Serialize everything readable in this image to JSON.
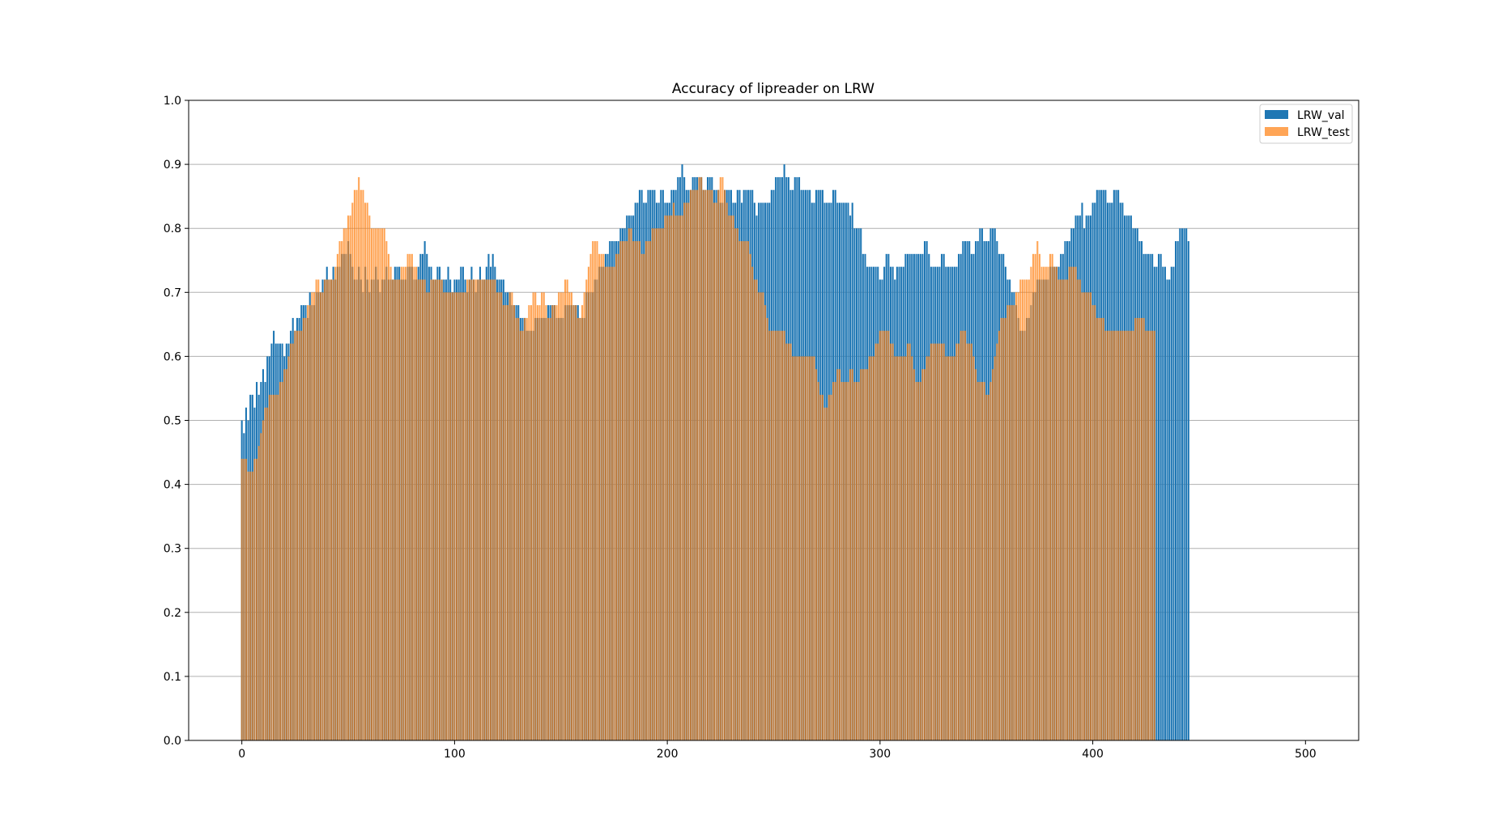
{
  "chart_data": {
    "type": "bar",
    "title": "Accuracy of lipreader on LRW",
    "xlabel": "",
    "ylabel": "",
    "xlim": [
      -25,
      525
    ],
    "ylim": [
      0,
      1.0
    ],
    "x_ticks": [
      "0",
      "100",
      "200",
      "300",
      "400",
      "500"
    ],
    "y_ticks": [
      "0.0",
      "0.1",
      "0.2",
      "0.3",
      "0.4",
      "0.5",
      "0.6",
      "0.7",
      "0.8",
      "0.9",
      "1.0"
    ],
    "grid": "horizontal",
    "legend_position": "top-right",
    "x_start": 0,
    "x_step": 1,
    "colors": {
      "LRW_val": "#1f77b4",
      "LRW_test": "#ff7f0e"
    },
    "series": [
      {
        "name": "LRW_val",
        "values": [
          0.5,
          0.48,
          0.52,
          0.5,
          0.54,
          0.54,
          0.52,
          0.56,
          0.54,
          0.56,
          0.58,
          0.56,
          0.6,
          0.6,
          0.62,
          0.64,
          0.62,
          0.62,
          0.62,
          0.62,
          0.6,
          0.62,
          0.62,
          0.64,
          0.66,
          0.64,
          0.66,
          0.66,
          0.68,
          0.68,
          0.68,
          0.66,
          0.7,
          0.68,
          0.68,
          0.7,
          0.7,
          0.7,
          0.72,
          0.72,
          0.74,
          0.72,
          0.72,
          0.74,
          0.72,
          0.74,
          0.74,
          0.76,
          0.76,
          0.76,
          0.78,
          0.76,
          0.74,
          0.72,
          0.72,
          0.74,
          0.72,
          0.7,
          0.74,
          0.72,
          0.7,
          0.72,
          0.72,
          0.74,
          0.72,
          0.7,
          0.72,
          0.72,
          0.74,
          0.72,
          0.72,
          0.72,
          0.74,
          0.74,
          0.74,
          0.72,
          0.72,
          0.72,
          0.74,
          0.74,
          0.74,
          0.72,
          0.72,
          0.74,
          0.76,
          0.76,
          0.78,
          0.76,
          0.74,
          0.74,
          0.72,
          0.72,
          0.74,
          0.74,
          0.72,
          0.72,
          0.72,
          0.74,
          0.72,
          0.7,
          0.72,
          0.72,
          0.72,
          0.74,
          0.74,
          0.72,
          0.7,
          0.72,
          0.74,
          0.72,
          0.7,
          0.72,
          0.74,
          0.72,
          0.72,
          0.74,
          0.76,
          0.74,
          0.76,
          0.74,
          0.72,
          0.72,
          0.72,
          0.72,
          0.7,
          0.7,
          0.7,
          0.68,
          0.68,
          0.68,
          0.68,
          0.66,
          0.66,
          0.66,
          0.64,
          0.64,
          0.64,
          0.64,
          0.66,
          0.66,
          0.66,
          0.66,
          0.66,
          0.66,
          0.68,
          0.68,
          0.68,
          0.68,
          0.66,
          0.66,
          0.66,
          0.66,
          0.68,
          0.68,
          0.68,
          0.68,
          0.68,
          0.68,
          0.68,
          0.66,
          0.66,
          0.66,
          0.7,
          0.7,
          0.7,
          0.7,
          0.72,
          0.72,
          0.74,
          0.74,
          0.74,
          0.76,
          0.76,
          0.78,
          0.78,
          0.78,
          0.78,
          0.78,
          0.8,
          0.8,
          0.8,
          0.82,
          0.82,
          0.82,
          0.82,
          0.84,
          0.84,
          0.86,
          0.86,
          0.84,
          0.84,
          0.86,
          0.86,
          0.86,
          0.86,
          0.84,
          0.84,
          0.86,
          0.86,
          0.84,
          0.84,
          0.84,
          0.86,
          0.86,
          0.86,
          0.88,
          0.88,
          0.9,
          0.88,
          0.86,
          0.86,
          0.86,
          0.88,
          0.88,
          0.88,
          0.88,
          0.88,
          0.86,
          0.86,
          0.88,
          0.88,
          0.88,
          0.86,
          0.86,
          0.86,
          0.84,
          0.84,
          0.86,
          0.86,
          0.86,
          0.86,
          0.84,
          0.84,
          0.86,
          0.86,
          0.84,
          0.86,
          0.86,
          0.86,
          0.86,
          0.86,
          0.84,
          0.82,
          0.84,
          0.84,
          0.84,
          0.84,
          0.84,
          0.84,
          0.86,
          0.86,
          0.88,
          0.88,
          0.88,
          0.88,
          0.9,
          0.88,
          0.88,
          0.86,
          0.86,
          0.88,
          0.88,
          0.88,
          0.86,
          0.86,
          0.86,
          0.86,
          0.86,
          0.84,
          0.84,
          0.86,
          0.86,
          0.86,
          0.86,
          0.84,
          0.84,
          0.84,
          0.84,
          0.86,
          0.86,
          0.84,
          0.84,
          0.84,
          0.84,
          0.84,
          0.84,
          0.82,
          0.84,
          0.8,
          0.8,
          0.8,
          0.8,
          0.76,
          0.76,
          0.74,
          0.74,
          0.74,
          0.74,
          0.74,
          0.74,
          0.72,
          0.72,
          0.74,
          0.76,
          0.76,
          0.74,
          0.74,
          0.72,
          0.74,
          0.74,
          0.74,
          0.74,
          0.76,
          0.76,
          0.76,
          0.76,
          0.76,
          0.76,
          0.76,
          0.76,
          0.76,
          0.78,
          0.78,
          0.76,
          0.74,
          0.74,
          0.74,
          0.74,
          0.74,
          0.76,
          0.76,
          0.74,
          0.74,
          0.74,
          0.74,
          0.74,
          0.74,
          0.76,
          0.76,
          0.78,
          0.78,
          0.78,
          0.78,
          0.76,
          0.76,
          0.78,
          0.78,
          0.8,
          0.8,
          0.78,
          0.78,
          0.78,
          0.8,
          0.8,
          0.8,
          0.78,
          0.76,
          0.76,
          0.76,
          0.74,
          0.72,
          0.72,
          0.7,
          0.7,
          0.68,
          0.66,
          0.64,
          0.64,
          0.64,
          0.66,
          0.66,
          0.68,
          0.7,
          0.7,
          0.72,
          0.72,
          0.72,
          0.72,
          0.72,
          0.72,
          0.74,
          0.74,
          0.74,
          0.74,
          0.74,
          0.76,
          0.76,
          0.78,
          0.78,
          0.78,
          0.8,
          0.8,
          0.82,
          0.82,
          0.82,
          0.84,
          0.8,
          0.82,
          0.82,
          0.82,
          0.84,
          0.84,
          0.86,
          0.86,
          0.86,
          0.86,
          0.86,
          0.84,
          0.84,
          0.84,
          0.86,
          0.86,
          0.86,
          0.84,
          0.84,
          0.82,
          0.82,
          0.82,
          0.82,
          0.8,
          0.8,
          0.8,
          0.78,
          0.78,
          0.76,
          0.76,
          0.76,
          0.76,
          0.76,
          0.74,
          0.74,
          0.76,
          0.76,
          0.74,
          0.74,
          0.72,
          0.72,
          0.74,
          0.74,
          0.78,
          0.78,
          0.8,
          0.8,
          0.8,
          0.8,
          0.78
        ]
      },
      {
        "name": "LRW_test",
        "values": [
          0.44,
          0.44,
          0.44,
          0.42,
          0.42,
          0.42,
          0.44,
          0.44,
          0.46,
          0.48,
          0.5,
          0.52,
          0.52,
          0.54,
          0.54,
          0.54,
          0.54,
          0.54,
          0.56,
          0.56,
          0.58,
          0.58,
          0.6,
          0.62,
          0.62,
          0.64,
          0.64,
          0.64,
          0.64,
          0.66,
          0.66,
          0.68,
          0.68,
          0.7,
          0.7,
          0.72,
          0.72,
          0.7,
          0.7,
          0.72,
          0.72,
          0.72,
          0.72,
          0.72,
          0.74,
          0.76,
          0.78,
          0.78,
          0.8,
          0.8,
          0.82,
          0.82,
          0.84,
          0.86,
          0.86,
          0.88,
          0.86,
          0.86,
          0.84,
          0.84,
          0.82,
          0.8,
          0.8,
          0.8,
          0.8,
          0.8,
          0.8,
          0.8,
          0.78,
          0.76,
          0.74,
          0.72,
          0.72,
          0.72,
          0.72,
          0.74,
          0.74,
          0.74,
          0.76,
          0.76,
          0.76,
          0.74,
          0.74,
          0.72,
          0.72,
          0.72,
          0.72,
          0.7,
          0.7,
          0.72,
          0.72,
          0.72,
          0.72,
          0.72,
          0.72,
          0.7,
          0.7,
          0.7,
          0.7,
          0.7,
          0.7,
          0.7,
          0.7,
          0.7,
          0.7,
          0.7,
          0.72,
          0.72,
          0.72,
          0.72,
          0.72,
          0.72,
          0.72,
          0.72,
          0.72,
          0.72,
          0.72,
          0.72,
          0.72,
          0.72,
          0.7,
          0.7,
          0.7,
          0.68,
          0.68,
          0.68,
          0.7,
          0.7,
          0.68,
          0.66,
          0.66,
          0.64,
          0.64,
          0.66,
          0.66,
          0.68,
          0.68,
          0.7,
          0.7,
          0.68,
          0.68,
          0.7,
          0.7,
          0.68,
          0.66,
          0.66,
          0.68,
          0.68,
          0.68,
          0.7,
          0.7,
          0.7,
          0.72,
          0.72,
          0.7,
          0.7,
          0.68,
          0.68,
          0.66,
          0.66,
          0.68,
          0.7,
          0.72,
          0.74,
          0.76,
          0.78,
          0.78,
          0.78,
          0.76,
          0.76,
          0.76,
          0.74,
          0.74,
          0.74,
          0.74,
          0.74,
          0.76,
          0.76,
          0.78,
          0.78,
          0.78,
          0.78,
          0.8,
          0.8,
          0.78,
          0.78,
          0.78,
          0.78,
          0.76,
          0.76,
          0.78,
          0.78,
          0.78,
          0.8,
          0.8,
          0.8,
          0.8,
          0.8,
          0.8,
          0.82,
          0.82,
          0.82,
          0.82,
          0.84,
          0.82,
          0.82,
          0.82,
          0.82,
          0.84,
          0.84,
          0.84,
          0.86,
          0.86,
          0.86,
          0.86,
          0.88,
          0.88,
          0.86,
          0.86,
          0.86,
          0.86,
          0.86,
          0.84,
          0.84,
          0.86,
          0.88,
          0.88,
          0.86,
          0.84,
          0.82,
          0.82,
          0.82,
          0.8,
          0.8,
          0.78,
          0.78,
          0.78,
          0.78,
          0.78,
          0.76,
          0.74,
          0.72,
          0.72,
          0.7,
          0.7,
          0.7,
          0.68,
          0.66,
          0.64,
          0.64,
          0.64,
          0.64,
          0.64,
          0.64,
          0.64,
          0.64,
          0.62,
          0.62,
          0.62,
          0.6,
          0.6,
          0.6,
          0.6,
          0.6,
          0.6,
          0.6,
          0.6,
          0.6,
          0.6,
          0.6,
          0.58,
          0.56,
          0.54,
          0.54,
          0.52,
          0.52,
          0.54,
          0.54,
          0.56,
          0.56,
          0.58,
          0.58,
          0.56,
          0.56,
          0.56,
          0.56,
          0.58,
          0.58,
          0.56,
          0.56,
          0.56,
          0.58,
          0.58,
          0.58,
          0.58,
          0.6,
          0.6,
          0.6,
          0.62,
          0.62,
          0.64,
          0.64,
          0.64,
          0.64,
          0.64,
          0.62,
          0.62,
          0.6,
          0.6,
          0.6,
          0.6,
          0.6,
          0.6,
          0.62,
          0.62,
          0.6,
          0.58,
          0.56,
          0.56,
          0.56,
          0.58,
          0.58,
          0.6,
          0.6,
          0.62,
          0.62,
          0.62,
          0.62,
          0.62,
          0.62,
          0.62,
          0.6,
          0.6,
          0.6,
          0.6,
          0.6,
          0.62,
          0.62,
          0.64,
          0.64,
          0.64,
          0.62,
          0.62,
          0.62,
          0.6,
          0.58,
          0.56,
          0.56,
          0.56,
          0.56,
          0.54,
          0.54,
          0.56,
          0.58,
          0.6,
          0.62,
          0.64,
          0.66,
          0.66,
          0.66,
          0.68,
          0.68,
          0.68,
          0.68,
          0.7,
          0.7,
          0.72,
          0.72,
          0.72,
          0.72,
          0.72,
          0.74,
          0.76,
          0.76,
          0.78,
          0.76,
          0.74,
          0.74,
          0.74,
          0.74,
          0.76,
          0.76,
          0.74,
          0.74,
          0.72,
          0.72,
          0.72,
          0.72,
          0.72,
          0.74,
          0.74,
          0.74,
          0.74,
          0.72,
          0.72,
          0.7,
          0.7,
          0.7,
          0.7,
          0.7,
          0.68,
          0.68,
          0.66,
          0.66,
          0.66,
          0.66,
          0.64,
          0.64,
          0.64,
          0.64,
          0.64,
          0.64,
          0.64,
          0.64,
          0.64,
          0.64,
          0.64,
          0.64,
          0.64,
          0.64,
          0.66,
          0.66,
          0.66,
          0.66,
          0.66,
          0.64,
          0.64,
          0.64,
          0.64,
          0.64
        ]
      }
    ]
  }
}
